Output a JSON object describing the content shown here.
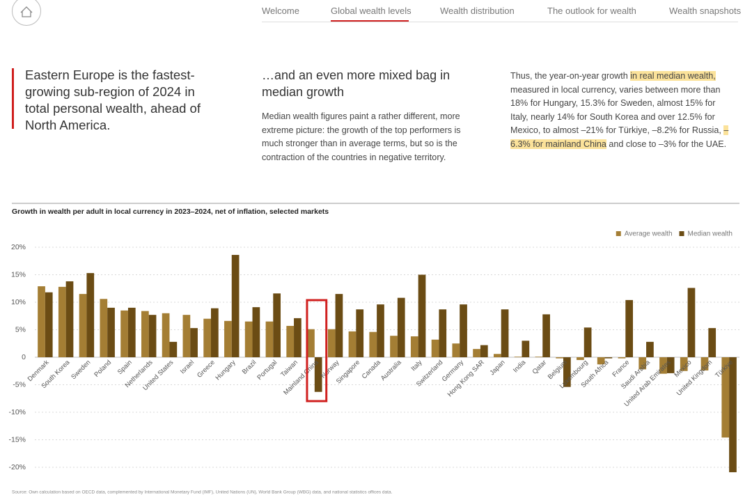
{
  "nav": {
    "items": [
      "Welcome",
      "Global wealth levels",
      "Wealth distribution",
      "The outlook for wealth",
      "Wealth snapshots"
    ]
  },
  "columns": [
    {
      "heading": "Eastern Europe is the fastest-growing sub-region of 2024 in total personal wealth, ahead of North America."
    },
    {
      "heading": "…and an even more mixed bag in median growth",
      "body": "Median wealth figures paint a rather different, more extreme picture: the growth of the top performers is much stronger than in average terms, but so is the contraction of the countries in negative territory."
    },
    {
      "parts": [
        "Thus, the year-on-year growth ",
        "in real median wealth,",
        " measured in local currency, varies between more than 18% for Hungary, 15.3% for Sweden, almost 15% for Italy, nearly 14% for South Korea and over 12.5% for Mexico, to almost –21% for Türkiye, –8.2% for Russia, ",
        "–6.3% for mainland China",
        " and close to –3% for the UAE."
      ]
    }
  ],
  "chart_data": {
    "type": "bar",
    "title": "Growth in wealth per adult in local currency in 2023–2024, net of inflation, selected markets",
    "categories": [
      "Denmark",
      "South Korea",
      "Sweden",
      "Poland",
      "Spain",
      "Netherlands",
      "United States",
      "Israel",
      "Greece",
      "Hungary",
      "Brazil",
      "Portugal",
      "Taiwan",
      "Mainland China",
      "Norway",
      "Singapore",
      "Canada",
      "Australia",
      "Italy",
      "Switzerland",
      "Germany",
      "Hong Kong SAR",
      "Japan",
      "India",
      "Qatar",
      "Belgium",
      "Luxembourg",
      "South Africa",
      "France",
      "Saudi Arabia",
      "United Arab Emirates",
      "Mexico",
      "United Kingdom",
      "Türkiye"
    ],
    "series": [
      {
        "name": "Average wealth",
        "color": "#a47e34",
        "values": [
          12.9,
          12.8,
          11.5,
          10.6,
          8.5,
          8.4,
          8.0,
          7.7,
          7.0,
          6.6,
          6.5,
          6.5,
          5.7,
          5.1,
          5.1,
          4.7,
          4.6,
          3.9,
          3.8,
          3.2,
          2.5,
          1.5,
          0.6,
          0.1,
          0.1,
          -0.2,
          -0.5,
          -1.3,
          -0.2,
          -2.2,
          -3.0,
          -2.5,
          -2.4,
          -14.6
        ]
      },
      {
        "name": "Median wealth",
        "color": "#6b4c14",
        "values": [
          11.8,
          13.8,
          15.3,
          9.0,
          9.0,
          7.7,
          2.8,
          5.3,
          8.9,
          18.6,
          9.1,
          11.6,
          7.1,
          -6.3,
          11.5,
          8.7,
          9.6,
          10.8,
          15.0,
          8.7,
          9.6,
          2.2,
          8.7,
          3.0,
          7.8,
          -5.4,
          5.4,
          -0.2,
          10.4,
          2.8,
          -2.9,
          12.6,
          5.3,
          -20.9
        ]
      }
    ],
    "ylim": [
      -20,
      20
    ],
    "yticks": [
      {
        "value": -20,
        "label": "-20%"
      },
      {
        "value": -15,
        "label": "-15%"
      },
      {
        "value": -10,
        "label": "-10%"
      },
      {
        "value": -5,
        "label": "-5%"
      },
      0,
      {
        "value": 5,
        "label": "5%"
      },
      {
        "value": 10,
        "label": "10%"
      },
      {
        "value": 15,
        "label": "15%"
      },
      {
        "value": 20,
        "label": "20%"
      }
    ],
    "grid": true,
    "legend": "top-right",
    "source": "Source: Own calculation based on OECD data, complemented by International Monetary Fund (IMF), United Nations (UN), World Bank Group (WBG) data, and national statistics offices data."
  }
}
